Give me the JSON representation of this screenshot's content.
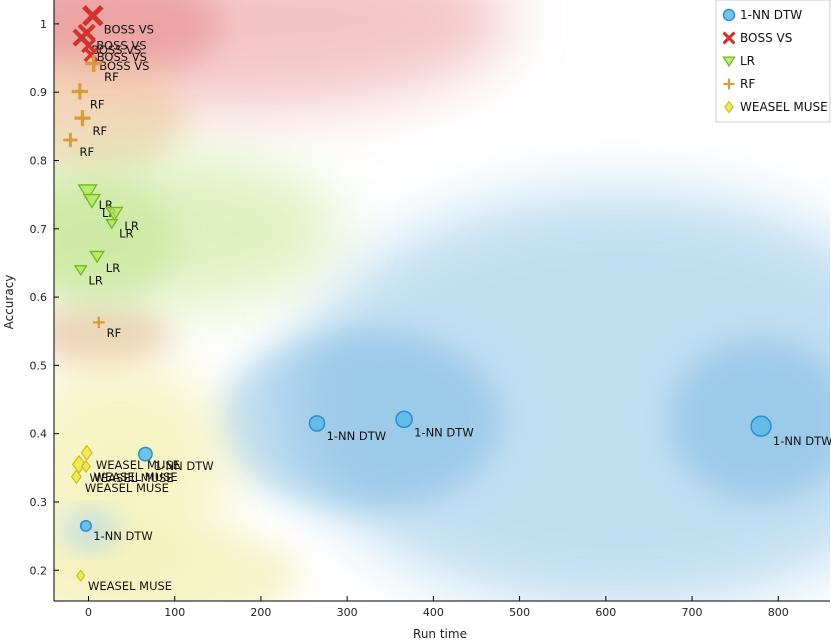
{
  "chart_data": {
    "type": "scatter",
    "xlabel": "Run time",
    "ylabel": "Accuracy",
    "xlim": [
      -40,
      860
    ],
    "ylim": [
      0.155,
      1.035
    ],
    "xticks": [
      0,
      100,
      200,
      300,
      400,
      500,
      600,
      700,
      800
    ],
    "yticks": [
      0.2,
      0.3,
      0.4,
      0.5,
      0.6,
      0.7,
      0.8,
      0.9,
      1.0
    ],
    "ytick_labels": [
      "0.2",
      "0.3",
      "0.4",
      "0.5",
      "0.6",
      "0.7",
      "0.8",
      "0.9",
      "1"
    ],
    "legend_position": "top-right",
    "background": "smoothed class-region shading behind the points",
    "series": [
      {
        "name": "1-NN DTW",
        "marker": "circle",
        "color": "#5bb8e8",
        "edge": "#2a8fd0",
        "points": [
          {
            "x": 265,
            "y": 0.415,
            "size": 2,
            "label": "1-NN DTW"
          },
          {
            "x": 366,
            "y": 0.421,
            "size": 2.2,
            "label": "1-NN DTW"
          },
          {
            "x": 780,
            "y": 0.411,
            "size": 3,
            "label": "1-NN DTW"
          },
          {
            "x": 66,
            "y": 0.37,
            "size": 1.6,
            "label": "1-NN DTW"
          },
          {
            "x": -3,
            "y": 0.265,
            "size": 1,
            "label": "1-NN DTW"
          }
        ]
      },
      {
        "name": "BOSS VS",
        "marker": "x",
        "color": "#d0342c",
        "points": [
          {
            "x": 5,
            "y": 1.012,
            "size": 2.6,
            "label": "BOSS VS"
          },
          {
            "x": -2,
            "y": 0.987,
            "size": 2,
            "label": "BOSS VS"
          },
          {
            "x": -8,
            "y": 0.98,
            "size": 2,
            "label": "BOSS VS"
          },
          {
            "x": 0,
            "y": 0.968,
            "size": 1.4,
            "label": "BOSS VS"
          },
          {
            "x": 3,
            "y": 0.955,
            "size": 1.4,
            "label": "BOSS VS"
          }
        ]
      },
      {
        "name": "LR",
        "marker": "triangle-down",
        "color": "#b5e85a",
        "edge": "#6cb820",
        "points": [
          {
            "x": -1,
            "y": 0.755,
            "size": 2.6,
            "label": "LR"
          },
          {
            "x": 4,
            "y": 0.742,
            "size": 2.2,
            "label": "LR"
          },
          {
            "x": 30,
            "y": 0.723,
            "size": 2.2,
            "label": "LR"
          },
          {
            "x": 27,
            "y": 0.708,
            "size": 1,
            "label": "LR"
          },
          {
            "x": 10,
            "y": 0.66,
            "size": 1.6,
            "label": "LR"
          },
          {
            "x": -9,
            "y": 0.64,
            "size": 1.2,
            "label": "LR"
          }
        ]
      },
      {
        "name": "RF",
        "marker": "plus",
        "color": "#d99a3a",
        "points": [
          {
            "x": 6,
            "y": 0.942,
            "size": 2.4,
            "label": "RF"
          },
          {
            "x": -10,
            "y": 0.901,
            "size": 2.2,
            "label": "RF"
          },
          {
            "x": -7,
            "y": 0.862,
            "size": 2.2,
            "label": "RF"
          },
          {
            "x": -21,
            "y": 0.83,
            "size": 1.8,
            "label": "RF"
          },
          {
            "x": 12,
            "y": 0.563,
            "size": 1.2,
            "label": "RF"
          }
        ]
      },
      {
        "name": "WEASEL MUSE",
        "marker": "diamond",
        "color": "#f2e84a",
        "edge": "#c9c01a",
        "points": [
          {
            "x": -2,
            "y": 0.372,
            "size": 1.8,
            "label": "WEASEL MUSE"
          },
          {
            "x": -11,
            "y": 0.355,
            "size": 2.4,
            "label": "WEASEL MUSE"
          },
          {
            "x": -3,
            "y": 0.352,
            "size": 1.2,
            "label": "WEASEL MUSE"
          },
          {
            "x": -14,
            "y": 0.337,
            "size": 1.5,
            "label": "WEASEL MUSE"
          },
          {
            "x": -9,
            "y": 0.192,
            "size": 1,
            "label": "WEASEL MUSE"
          }
        ]
      }
    ]
  }
}
